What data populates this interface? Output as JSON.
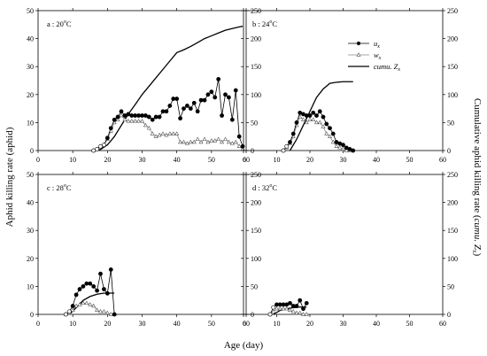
{
  "chart_data": {
    "type": "line",
    "xlabel": "Age (day)",
    "ylabel_left": "Aphid killing rate (aphid)",
    "ylabel_right_prefix": "Cumulative aphid killing rate (",
    "ylabel_right_italic": "cumu.",
    "ylabel_right_z": " Z",
    "ylabel_right_sub": "x",
    "ylabel_right_suffix": ")",
    "xlim": [
      0,
      60
    ],
    "xticks": [
      0,
      10,
      20,
      30,
      40,
      50,
      60
    ],
    "ylim_left": [
      0,
      50
    ],
    "yticks_left": [
      0,
      10,
      20,
      30,
      40,
      50
    ],
    "ylim_right": [
      0,
      250
    ],
    "yticks_right": [
      0,
      50,
      100,
      150,
      200,
      250
    ],
    "legend": {
      "position": "top-right of panel b",
      "entries": [
        {
          "key": "ux",
          "base": "u",
          "sub": "x"
        },
        {
          "key": "wx",
          "base": "w",
          "sub": "x"
        },
        {
          "key": "cumu",
          "prefix": "cumu. ",
          "base": "Z",
          "sub": "x"
        }
      ]
    },
    "panels": [
      {
        "id": "a",
        "label_prefix": "a : 20",
        "label_degree": "o",
        "label_unit": "C",
        "ux": {
          "x": [
            16,
            17,
            18,
            19,
            20,
            21,
            22,
            23,
            24,
            25,
            26,
            27,
            28,
            29,
            30,
            31,
            32,
            33,
            34,
            35,
            36,
            37,
            38,
            39,
            40,
            41,
            42,
            43,
            44,
            45,
            46,
            47,
            48,
            49,
            50,
            51,
            52,
            53,
            54,
            55,
            56,
            57,
            58,
            59
          ],
          "y": [
            0,
            0.5,
            1.5,
            2,
            4.5,
            8,
            11,
            12,
            14,
            12.5,
            13,
            12.5,
            12.5,
            12.5,
            12.5,
            12.5,
            12,
            11,
            12,
            12,
            14,
            14,
            16,
            18.5,
            18.5,
            11.5,
            15,
            16,
            15,
            17,
            14,
            18,
            18,
            20,
            21,
            19,
            25.5,
            12.5,
            20,
            19,
            11,
            21.5,
            5,
            1.5
          ]
        },
        "wx": {
          "x": [
            16,
            17,
            18,
            19,
            20,
            21,
            22,
            23,
            24,
            25,
            26,
            27,
            28,
            29,
            30,
            31,
            32,
            33,
            34,
            35,
            36,
            37,
            38,
            39,
            40,
            41,
            42,
            43,
            44,
            45,
            46,
            47,
            48,
            49,
            50,
            51,
            52,
            53,
            54,
            55,
            56,
            57,
            58,
            59
          ],
          "y": [
            0,
            0.5,
            1.5,
            2,
            4,
            7,
            10,
            11,
            12.5,
            11,
            10.5,
            10.5,
            10.5,
            10.5,
            10.5,
            9,
            8,
            6,
            5,
            5.5,
            6,
            5.5,
            6,
            6,
            6,
            3,
            3,
            2.5,
            3,
            3,
            4,
            3,
            4,
            3,
            3.5,
            3.5,
            4,
            3,
            4,
            3,
            2.5,
            3,
            1.5,
            0.5
          ]
        },
        "cumu": {
          "x": [
            16,
            18,
            20,
            22,
            24,
            26,
            28,
            30,
            32,
            34,
            36,
            38,
            40,
            42,
            44,
            46,
            48,
            50,
            52,
            54,
            56,
            58,
            59
          ],
          "y": [
            0,
            2,
            10,
            25,
            45,
            65,
            82,
            100,
            115,
            130,
            145,
            160,
            175,
            180,
            186,
            193,
            200,
            205,
            210,
            215,
            218,
            221,
            222
          ]
        }
      },
      {
        "id": "b",
        "label_prefix": "b : 24",
        "label_degree": "o",
        "label_unit": "C",
        "ux": {
          "x": [
            12,
            13,
            14,
            15,
            16,
            17,
            18,
            19,
            20,
            21,
            22,
            23,
            24,
            25,
            26,
            27,
            28,
            29,
            30,
            31,
            32,
            33
          ],
          "y": [
            0,
            1.5,
            3,
            6,
            10,
            13.5,
            13,
            12.5,
            12.5,
            13.5,
            12.5,
            14,
            12,
            9.5,
            8,
            6,
            3,
            2.5,
            2,
            1,
            0.5,
            0
          ]
        },
        "wx": {
          "x": [
            12,
            13,
            14,
            15,
            16,
            17,
            18,
            19,
            20,
            21,
            22,
            23,
            24,
            25,
            26,
            27,
            28,
            29,
            30,
            31,
            32
          ],
          "y": [
            0,
            1,
            2.5,
            5,
            9,
            12,
            11,
            10,
            11,
            11,
            10,
            10,
            8.5,
            6,
            5,
            3,
            1.5,
            1,
            0.5,
            0,
            0
          ]
        },
        "cumu": {
          "x": [
            14,
            16,
            18,
            20,
            22,
            24,
            26,
            28,
            30,
            33
          ],
          "y": [
            0,
            20,
            45,
            70,
            95,
            110,
            120,
            122,
            123,
            123
          ]
        }
      },
      {
        "id": "c",
        "label_prefix": "c : 28",
        "label_degree": "o",
        "label_unit": "C",
        "ux": {
          "x": [
            8,
            9,
            10,
            11,
            12,
            13,
            14,
            15,
            16,
            17,
            18,
            19,
            20,
            21,
            22
          ],
          "y": [
            0,
            1,
            3,
            7,
            9,
            10,
            11,
            11,
            10,
            8.5,
            14.5,
            9,
            7.5,
            16,
            0
          ]
        },
        "wx": {
          "x": [
            8,
            9,
            10,
            11,
            12,
            13,
            14,
            15,
            16,
            17,
            18,
            19,
            20,
            21,
            22
          ],
          "y": [
            0,
            0.5,
            1.5,
            3,
            3.5,
            4,
            4,
            3.5,
            3,
            1.5,
            1,
            1,
            0.5,
            0,
            0
          ]
        },
        "cumu": {
          "x": [
            9,
            11,
            13,
            15,
            17,
            19,
            21,
            22
          ],
          "y": [
            0,
            12,
            25,
            32,
            36,
            38,
            38,
            38
          ]
        }
      },
      {
        "id": "d",
        "label_prefix": "d : 32",
        "label_degree": "o",
        "label_unit": "C",
        "ux": {
          "x": [
            8,
            9,
            10,
            11,
            12,
            13,
            14,
            15,
            16,
            17,
            18,
            19
          ],
          "y": [
            0,
            2.5,
            3.5,
            3.5,
            3.5,
            3.5,
            4,
            3,
            3,
            5,
            2,
            4
          ]
        },
        "wx": {
          "x": [
            8,
            9,
            10,
            11,
            12,
            13,
            14,
            15,
            16,
            17,
            18,
            19
          ],
          "y": [
            0,
            1,
            2,
            2,
            2,
            2,
            1.5,
            1,
            0.5,
            0.5,
            0,
            0
          ]
        },
        "cumu": {
          "x": [
            9,
            11,
            13,
            15,
            17,
            19
          ],
          "y": [
            0,
            7,
            10,
            12,
            13,
            13
          ]
        }
      }
    ]
  }
}
